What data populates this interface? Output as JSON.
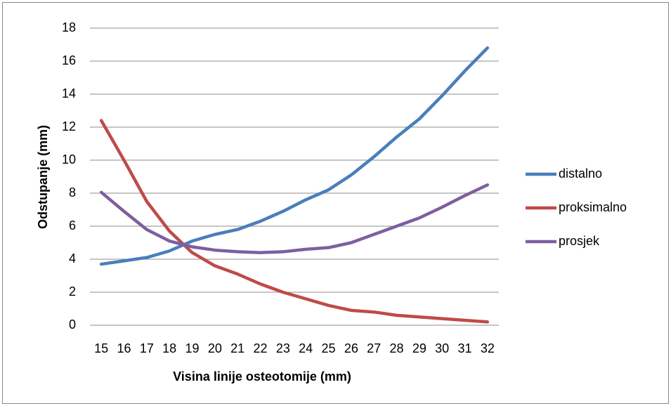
{
  "chart_data": {
    "type": "line",
    "xlabel": "Visina linije osteotomije (mm)",
    "ylabel": "Odstupanje  (mm)",
    "categories": [
      "15",
      "16",
      "17",
      "18",
      "19",
      "20",
      "21",
      "22",
      "23",
      "24",
      "25",
      "26",
      "27",
      "28",
      "29",
      "30",
      "31",
      "32"
    ],
    "series": [
      {
        "name": "distalno",
        "color": "#4a7ebb",
        "values": [
          3.7,
          3.9,
          4.1,
          4.5,
          5.1,
          5.5,
          5.8,
          6.3,
          6.9,
          7.6,
          8.2,
          9.1,
          10.2,
          11.4,
          12.5,
          13.9,
          15.4,
          16.8
        ]
      },
      {
        "name": "proksimalno",
        "color": "#be4b48",
        "values": [
          12.4,
          10.0,
          7.5,
          5.7,
          4.4,
          3.6,
          3.1,
          2.5,
          2.0,
          1.6,
          1.2,
          0.9,
          0.8,
          0.6,
          0.5,
          0.4,
          0.3,
          0.2
        ]
      },
      {
        "name": "prosjek",
        "color": "#7d5fa0",
        "values": [
          8.05,
          6.9,
          5.8,
          5.1,
          4.75,
          4.55,
          4.45,
          4.4,
          4.45,
          4.6,
          4.7,
          5.0,
          5.5,
          6.0,
          6.5,
          7.15,
          7.85,
          8.5
        ]
      }
    ],
    "ylim": [
      0,
      18
    ],
    "yticks": [
      0,
      2,
      4,
      6,
      8,
      10,
      12,
      14,
      16,
      18
    ],
    "grid": true,
    "legend": "right"
  }
}
